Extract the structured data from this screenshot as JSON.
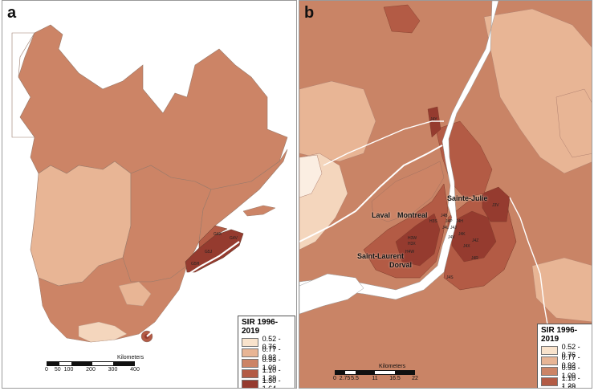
{
  "panels": {
    "a": {
      "letter": "a"
    },
    "b": {
      "letter": "b"
    }
  },
  "legend": {
    "title": "SIR 1996-2019",
    "classes": [
      {
        "label": "0.52 - 0.76",
        "color": "#f9e3cc"
      },
      {
        "label": "0.77 - 0.92",
        "color": "#e8b595"
      },
      {
        "label": "0.93 - 1.09",
        "color": "#cc8466"
      },
      {
        "label": "1.10 - 1.29",
        "color": "#b35b45"
      },
      {
        "label": "1.30 - 1.64",
        "color": "#953b2f"
      }
    ]
  },
  "scalebar_a": {
    "unit": "Kilometers",
    "ticks": [
      "0",
      "50",
      "100",
      "200",
      "300",
      "400"
    ]
  },
  "scalebar_b": {
    "unit": "Kilometers",
    "ticks": [
      "0",
      "2.75",
      "5.5",
      "11",
      "16.5",
      "22"
    ]
  },
  "cities": {
    "laval": "Laval",
    "montreal": "Montreal",
    "sainte_julie": "Sainte-Julie",
    "saint_laurent": "Saint-Laurent",
    "dorval": "Dorval"
  },
  "fsa_labels_b": [
    "J4Y",
    "J3V",
    "H3S",
    "J4B",
    "J4P",
    "J4H",
    "J4L",
    "J4J",
    "H3W",
    "H3X",
    "J4K",
    "H4W",
    "J4V",
    "J4Z",
    "J4R",
    "J4S",
    "J4X"
  ],
  "fsa_labels_a": [
    "G4X",
    "G4V",
    "G5J",
    "G5H"
  ],
  "colors": {
    "water": "#ffffff",
    "river_outline": "#9a9a9a"
  }
}
